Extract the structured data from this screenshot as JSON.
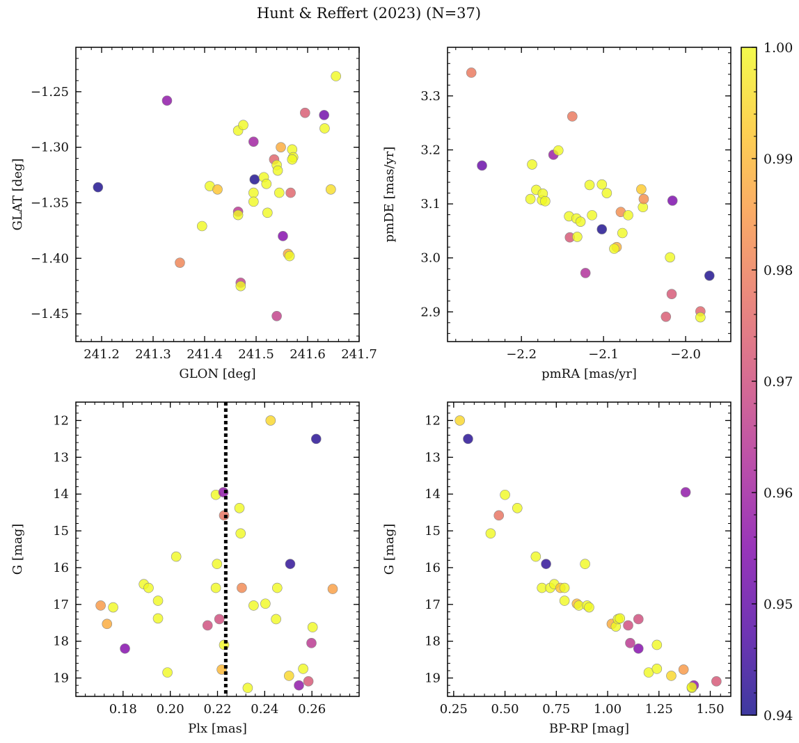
{
  "title": "Hunt & Reffert (2023) (N=37)",
  "colorbar": {
    "ticks": [
      "1.00",
      "0.99",
      "0.98",
      "0.97",
      "0.96",
      "0.95",
      "0.94"
    ],
    "range": [
      0.94,
      1.0
    ],
    "colormap": "plasma"
  },
  "chart_data": [
    {
      "type": "scatter",
      "panel": "top-left",
      "xlabel": "GLON [deg]",
      "ylabel": "GLAT [deg]",
      "xlim": [
        241.15,
        241.7
      ],
      "ylim": [
        -1.475,
        -1.21
      ],
      "y_inverted": false,
      "xticks": [
        241.2,
        241.3,
        241.4,
        241.5,
        241.6,
        241.7
      ],
      "xtick_labels": [
        "241.2",
        "241.3",
        "241.4",
        "241.5",
        "241.6",
        "241.7"
      ],
      "yticks": [
        -1.45,
        -1.4,
        -1.35,
        -1.3,
        -1.25
      ],
      "ytick_labels": [
        "−1.45",
        "−1.40",
        "−1.35",
        "−1.30",
        "−1.25"
      ],
      "points": [
        {
          "x": 241.193,
          "y": -1.336,
          "c": 0.941
        },
        {
          "x": 241.327,
          "y": -1.258,
          "c": 0.957
        },
        {
          "x": 241.352,
          "y": -1.404,
          "c": 0.981
        },
        {
          "x": 241.395,
          "y": -1.371,
          "c": 1.0
        },
        {
          "x": 241.41,
          "y": -1.335,
          "c": 1.0
        },
        {
          "x": 241.425,
          "y": -1.338,
          "c": 0.992
        },
        {
          "x": 241.465,
          "y": -1.285,
          "c": 1.0
        },
        {
          "x": 241.465,
          "y": -1.358,
          "c": 0.965
        },
        {
          "x": 241.465,
          "y": -1.361,
          "c": 1.0
        },
        {
          "x": 241.47,
          "y": -1.422,
          "c": 0.967
        },
        {
          "x": 241.47,
          "y": -1.425,
          "c": 1.0
        },
        {
          "x": 241.475,
          "y": -1.28,
          "c": 1.0
        },
        {
          "x": 241.495,
          "y": -1.295,
          "c": 0.96
        },
        {
          "x": 241.495,
          "y": -1.341,
          "c": 1.0
        },
        {
          "x": 241.495,
          "y": -1.349,
          "c": 1.0
        },
        {
          "x": 241.497,
          "y": -1.329,
          "c": 0.941
        },
        {
          "x": 241.515,
          "y": -1.327,
          "c": 1.0
        },
        {
          "x": 241.52,
          "y": -1.333,
          "c": 1.0
        },
        {
          "x": 241.522,
          "y": -1.359,
          "c": 1.0
        },
        {
          "x": 241.535,
          "y": -1.311,
          "c": 0.975
        },
        {
          "x": 241.54,
          "y": -1.316,
          "c": 1.0
        },
        {
          "x": 241.542,
          "y": -1.321,
          "c": 1.0
        },
        {
          "x": 241.54,
          "y": -1.452,
          "c": 0.967
        },
        {
          "x": 241.545,
          "y": -1.341,
          "c": 1.0
        },
        {
          "x": 241.548,
          "y": -1.3,
          "c": 0.988
        },
        {
          "x": 241.552,
          "y": -1.38,
          "c": 0.955
        },
        {
          "x": 241.562,
          "y": -1.396,
          "c": 0.987
        },
        {
          "x": 241.565,
          "y": -1.398,
          "c": 1.0
        },
        {
          "x": 241.567,
          "y": -1.341,
          "c": 0.975
        },
        {
          "x": 241.57,
          "y": -1.302,
          "c": 1.0
        },
        {
          "x": 241.572,
          "y": -1.309,
          "c": 1.0
        },
        {
          "x": 241.57,
          "y": -1.311,
          "c": 1.0
        },
        {
          "x": 241.595,
          "y": -1.269,
          "c": 0.973
        },
        {
          "x": 241.632,
          "y": -1.271,
          "c": 0.952
        },
        {
          "x": 241.633,
          "y": -1.283,
          "c": 1.0
        },
        {
          "x": 241.645,
          "y": -1.338,
          "c": 0.996
        },
        {
          "x": 241.655,
          "y": -1.236,
          "c": 1.0
        }
      ]
    },
    {
      "type": "scatter",
      "panel": "top-right",
      "xlabel": "pmRA [mas/yr]",
      "ylabel": "pmDE [mas/yr]",
      "xlim": [
        -2.29,
        -1.945
      ],
      "ylim": [
        2.845,
        3.39
      ],
      "y_inverted": false,
      "xticks": [
        -2.2,
        -2.1,
        -2.0
      ],
      "xtick_labels": [
        "−2.2",
        "−2.1",
        "−2.0"
      ],
      "yticks": [
        2.9,
        3.0,
        3.1,
        3.2,
        3.3
      ],
      "ytick_labels": [
        "2.9",
        "3.0",
        "3.1",
        "3.2",
        "3.3"
      ],
      "points": [
        {
          "x": -2.261,
          "y": 3.343,
          "c": 0.979
        },
        {
          "x": -2.248,
          "y": 3.171,
          "c": 0.951
        },
        {
          "x": -2.189,
          "y": 3.109,
          "c": 1.0
        },
        {
          "x": -2.187,
          "y": 3.173,
          "c": 1.0
        },
        {
          "x": -2.182,
          "y": 3.126,
          "c": 1.0
        },
        {
          "x": -2.175,
          "y": 3.107,
          "c": 1.0
        },
        {
          "x": -2.174,
          "y": 3.119,
          "c": 1.0
        },
        {
          "x": -2.171,
          "y": 3.105,
          "c": 1.0
        },
        {
          "x": -2.161,
          "y": 3.191,
          "c": 0.959
        },
        {
          "x": -2.155,
          "y": 3.199,
          "c": 1.0
        },
        {
          "x": -2.142,
          "y": 3.077,
          "c": 1.0
        },
        {
          "x": -2.141,
          "y": 3.038,
          "c": 0.972
        },
        {
          "x": -2.138,
          "y": 3.262,
          "c": 0.979
        },
        {
          "x": -2.133,
          "y": 3.073,
          "c": 1.0
        },
        {
          "x": -2.132,
          "y": 3.039,
          "c": 1.0
        },
        {
          "x": -2.128,
          "y": 3.067,
          "c": 1.0
        },
        {
          "x": -2.122,
          "y": 2.972,
          "c": 0.963
        },
        {
          "x": -2.117,
          "y": 3.135,
          "c": 1.0
        },
        {
          "x": -2.114,
          "y": 3.079,
          "c": 1.0
        },
        {
          "x": -2.102,
          "y": 3.136,
          "c": 1.0
        },
        {
          "x": -2.102,
          "y": 3.053,
          "c": 0.941
        },
        {
          "x": -2.096,
          "y": 3.12,
          "c": 1.0
        },
        {
          "x": -2.084,
          "y": 3.02,
          "c": 0.989
        },
        {
          "x": -2.087,
          "y": 3.017,
          "c": 1.0
        },
        {
          "x": -2.079,
          "y": 3.085,
          "c": 0.983
        },
        {
          "x": -2.077,
          "y": 3.046,
          "c": 1.0
        },
        {
          "x": -2.07,
          "y": 3.079,
          "c": 1.0
        },
        {
          "x": -2.054,
          "y": 3.127,
          "c": 0.993
        },
        {
          "x": -2.052,
          "y": 3.094,
          "c": 1.0
        },
        {
          "x": -2.051,
          "y": 3.109,
          "c": 0.983
        },
        {
          "x": -2.024,
          "y": 2.891,
          "c": 0.973
        },
        {
          "x": -2.019,
          "y": 3.001,
          "c": 1.0
        },
        {
          "x": -2.017,
          "y": 2.933,
          "c": 0.972
        },
        {
          "x": -2.016,
          "y": 3.106,
          "c": 0.954
        },
        {
          "x": -1.982,
          "y": 2.901,
          "c": 0.975
        },
        {
          "x": -1.982,
          "y": 2.89,
          "c": 1.0
        },
        {
          "x": -1.971,
          "y": 2.967,
          "c": 0.941
        }
      ]
    },
    {
      "type": "scatter",
      "panel": "bottom-left",
      "xlabel": "Plx [mas]",
      "ylabel": "G [mag]",
      "xlim": [
        0.16,
        0.28
      ],
      "ylim": [
        19.5,
        11.5
      ],
      "y_inverted": true,
      "xticks": [
        0.18,
        0.2,
        0.22,
        0.24,
        0.26
      ],
      "xtick_labels": [
        "0.18",
        "0.20",
        "0.22",
        "0.24",
        "0.26"
      ],
      "yticks": [
        12,
        13,
        14,
        15,
        16,
        17,
        18,
        19
      ],
      "ytick_labels": [
        "12",
        "13",
        "14",
        "15",
        "16",
        "17",
        "18",
        "19"
      ],
      "vline": {
        "x": 0.2235,
        "style": "dotted",
        "color": "#000000"
      },
      "points": [
        {
          "x": 0.1705,
          "y": 17.03,
          "c": 0.985
        },
        {
          "x": 0.1732,
          "y": 17.53,
          "c": 0.988
        },
        {
          "x": 0.1758,
          "y": 17.08,
          "c": 1.0
        },
        {
          "x": 0.1808,
          "y": 18.2,
          "c": 0.955
        },
        {
          "x": 0.1888,
          "y": 16.45,
          "c": 1.0
        },
        {
          "x": 0.1908,
          "y": 16.55,
          "c": 1.0
        },
        {
          "x": 0.1948,
          "y": 16.9,
          "c": 1.0
        },
        {
          "x": 0.1948,
          "y": 17.38,
          "c": 1.0
        },
        {
          "x": 0.1988,
          "y": 18.85,
          "c": 1.0
        },
        {
          "x": 0.2025,
          "y": 15.7,
          "c": 1.0
        },
        {
          "x": 0.2158,
          "y": 17.57,
          "c": 0.97
        },
        {
          "x": 0.2193,
          "y": 14.02,
          "c": 1.0
        },
        {
          "x": 0.2193,
          "y": 16.55,
          "c": 1.0
        },
        {
          "x": 0.2198,
          "y": 15.9,
          "c": 1.0
        },
        {
          "x": 0.2208,
          "y": 17.4,
          "c": 0.97
        },
        {
          "x": 0.2218,
          "y": 18.77,
          "c": 0.99
        },
        {
          "x": 0.2225,
          "y": 13.95,
          "c": 0.957
        },
        {
          "x": 0.2228,
          "y": 14.58,
          "c": 0.978
        },
        {
          "x": 0.2228,
          "y": 18.1,
          "c": 1.0
        },
        {
          "x": 0.2293,
          "y": 14.38,
          "c": 1.0
        },
        {
          "x": 0.2298,
          "y": 15.07,
          "c": 1.0
        },
        {
          "x": 0.2303,
          "y": 16.55,
          "c": 0.982
        },
        {
          "x": 0.2328,
          "y": 19.27,
          "c": 1.0
        },
        {
          "x": 0.2353,
          "y": 17.03,
          "c": 1.0
        },
        {
          "x": 0.2403,
          "y": 16.98,
          "c": 1.0
        },
        {
          "x": 0.2425,
          "y": 12.0,
          "c": 0.995
        },
        {
          "x": 0.2448,
          "y": 17.4,
          "c": 1.0
        },
        {
          "x": 0.2453,
          "y": 16.55,
          "c": 1.0
        },
        {
          "x": 0.2503,
          "y": 18.94,
          "c": 0.995
        },
        {
          "x": 0.2508,
          "y": 15.9,
          "c": 0.943
        },
        {
          "x": 0.2545,
          "y": 19.2,
          "c": 0.957
        },
        {
          "x": 0.2563,
          "y": 18.75,
          "c": 1.0
        },
        {
          "x": 0.2585,
          "y": 19.09,
          "c": 0.972
        },
        {
          "x": 0.2598,
          "y": 18.05,
          "c": 0.965
        },
        {
          "x": 0.2603,
          "y": 17.62,
          "c": 1.0
        },
        {
          "x": 0.2618,
          "y": 12.5,
          "c": 0.942
        },
        {
          "x": 0.2688,
          "y": 16.58,
          "c": 0.986
        }
      ]
    },
    {
      "type": "scatter",
      "panel": "bottom-right",
      "xlabel": "BP-RP [mag]",
      "ylabel": "G [mag]",
      "xlim": [
        0.22,
        1.6
      ],
      "ylim": [
        19.5,
        11.5
      ],
      "y_inverted": true,
      "xticks": [
        0.25,
        0.5,
        0.75,
        1.0,
        1.25,
        1.5
      ],
      "xtick_labels": [
        "0.25",
        "0.50",
        "0.75",
        "1.00",
        "1.25",
        "1.50"
      ],
      "yticks": [
        12,
        13,
        14,
        15,
        16,
        17,
        18,
        19
      ],
      "ytick_labels": [
        "12",
        "13",
        "14",
        "15",
        "16",
        "17",
        "18",
        "19"
      ],
      "points": [
        {
          "x": 0.28,
          "y": 12.0,
          "c": 0.995
        },
        {
          "x": 0.32,
          "y": 12.5,
          "c": 0.942
        },
        {
          "x": 0.43,
          "y": 15.07,
          "c": 1.0
        },
        {
          "x": 0.47,
          "y": 14.58,
          "c": 0.978
        },
        {
          "x": 0.5,
          "y": 14.02,
          "c": 1.0
        },
        {
          "x": 0.56,
          "y": 14.38,
          "c": 1.0
        },
        {
          "x": 0.65,
          "y": 15.7,
          "c": 1.0
        },
        {
          "x": 0.68,
          "y": 16.55,
          "c": 1.0
        },
        {
          "x": 0.7,
          "y": 15.9,
          "c": 0.943
        },
        {
          "x": 0.72,
          "y": 16.55,
          "c": 1.0
        },
        {
          "x": 0.74,
          "y": 16.45,
          "c": 1.0
        },
        {
          "x": 0.77,
          "y": 16.55,
          "c": 0.992
        },
        {
          "x": 0.79,
          "y": 16.55,
          "c": 1.0
        },
        {
          "x": 0.79,
          "y": 16.9,
          "c": 1.0
        },
        {
          "x": 0.85,
          "y": 16.98,
          "c": 0.99
        },
        {
          "x": 0.86,
          "y": 17.03,
          "c": 1.0
        },
        {
          "x": 0.89,
          "y": 15.9,
          "c": 1.0
        },
        {
          "x": 0.9,
          "y": 17.03,
          "c": 1.0
        },
        {
          "x": 0.91,
          "y": 17.08,
          "c": 1.0
        },
        {
          "x": 1.02,
          "y": 17.53,
          "c": 0.988
        },
        {
          "x": 1.04,
          "y": 17.6,
          "c": 1.0
        },
        {
          "x": 1.05,
          "y": 17.4,
          "c": 1.0
        },
        {
          "x": 1.06,
          "y": 17.38,
          "c": 1.0
        },
        {
          "x": 1.1,
          "y": 17.57,
          "c": 0.97
        },
        {
          "x": 1.11,
          "y": 18.05,
          "c": 0.965
        },
        {
          "x": 1.15,
          "y": 17.4,
          "c": 0.97
        },
        {
          "x": 1.15,
          "y": 18.2,
          "c": 0.955
        },
        {
          "x": 1.2,
          "y": 18.85,
          "c": 1.0
        },
        {
          "x": 1.24,
          "y": 18.1,
          "c": 1.0
        },
        {
          "x": 1.24,
          "y": 18.75,
          "c": 1.0
        },
        {
          "x": 1.31,
          "y": 18.94,
          "c": 0.995
        },
        {
          "x": 1.37,
          "y": 18.77,
          "c": 0.985
        },
        {
          "x": 1.38,
          "y": 13.95,
          "c": 0.957
        },
        {
          "x": 1.41,
          "y": 19.27,
          "c": 1.0
        },
        {
          "x": 1.42,
          "y": 19.2,
          "c": 0.957
        },
        {
          "x": 1.41,
          "y": 19.25,
          "c": 1.0
        },
        {
          "x": 1.53,
          "y": 19.09,
          "c": 0.972
        }
      ]
    }
  ]
}
